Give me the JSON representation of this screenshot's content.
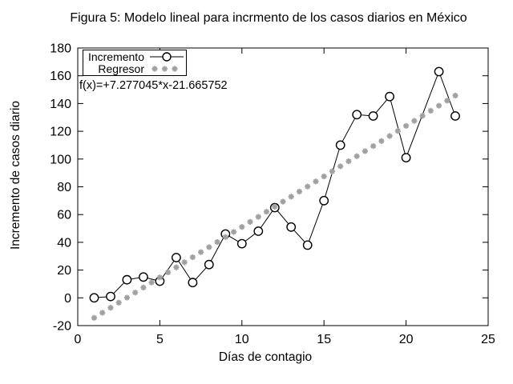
{
  "title": "Figura 5: Modelo lineal para incrmento de los casos diarios en México",
  "annotation": "f(x)=+7.277045*x-21.665752",
  "legend": {
    "incremento": "Incremento",
    "regresor": "Regresor"
  },
  "colors": {
    "series": "#000000",
    "regressor": "#a0a0a0",
    "background": "#ffffff",
    "text": "#000000"
  },
  "chart_data": {
    "type": "line",
    "title": "Figura 5: Modelo lineal para incrmento de los casos diarios en México",
    "xlabel": "Días de contagio",
    "ylabel": "Incremento de casos diario",
    "xlim": [
      0,
      25
    ],
    "ylim": [
      -20,
      180
    ],
    "xticks": [
      0,
      5,
      10,
      15,
      20,
      25
    ],
    "yticks": [
      -20,
      0,
      20,
      40,
      60,
      80,
      100,
      120,
      140,
      160,
      180
    ],
    "grid": false,
    "legend_position": "top-left",
    "series": [
      {
        "name": "Incremento",
        "style": "line-with-open-circle-markers",
        "color": "#000000",
        "x": [
          1,
          2,
          3,
          4,
          5,
          6,
          7,
          8,
          9,
          10,
          11,
          12,
          13,
          14,
          15,
          16,
          17,
          18,
          19,
          20,
          22,
          23
        ],
        "y": [
          0,
          1,
          13,
          15,
          12,
          29,
          11,
          24,
          46,
          39,
          48,
          65,
          51,
          38,
          70,
          110,
          132,
          131,
          145,
          101,
          163,
          131
        ]
      },
      {
        "name": "Regresor",
        "style": "asterisk-markers",
        "color": "#a0a0a0",
        "equation": "f(x)=+7.277045*x-21.665752",
        "model": {
          "slope": 7.277045,
          "intercept": -21.665752,
          "x_start": 1,
          "x_end": 23,
          "x_step": 0.5
        }
      }
    ]
  }
}
